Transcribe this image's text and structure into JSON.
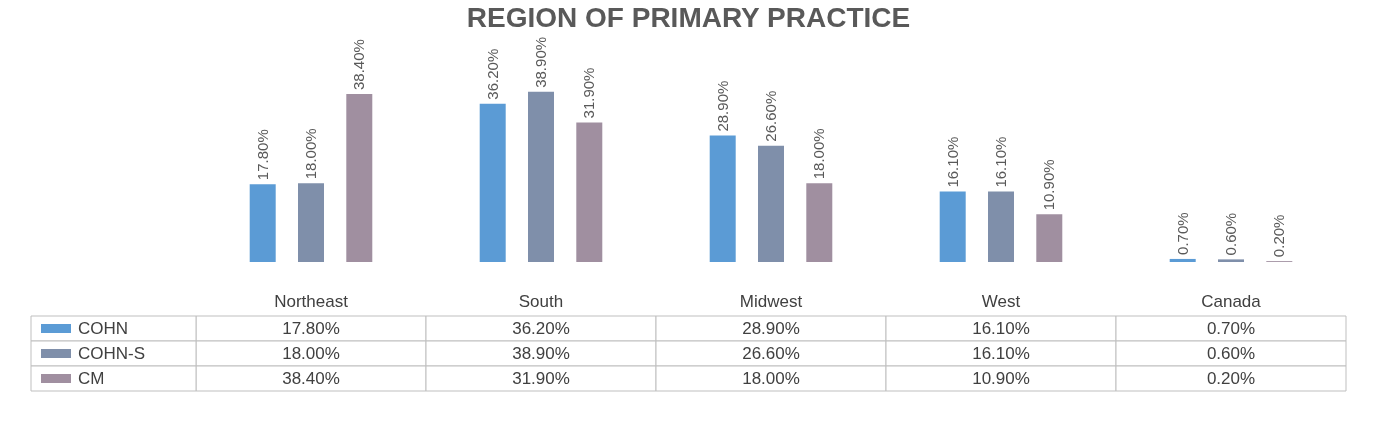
{
  "chart_data": {
    "type": "bar",
    "title": "REGION OF PRIMARY PRACTICE",
    "categories": [
      "Northeast",
      "South",
      "Midwest",
      "West",
      "Canada"
    ],
    "series": [
      {
        "name": "COHN",
        "color": "#5b9bd5",
        "values": [
          17.8,
          36.2,
          28.9,
          16.1,
          0.7
        ],
        "value_labels": [
          "17.80%",
          "36.20%",
          "28.90%",
          "16.10%",
          "0.70%"
        ]
      },
      {
        "name": "COHN-S",
        "color": "#7f8faa",
        "values": [
          18.0,
          38.9,
          26.6,
          16.1,
          0.6
        ],
        "value_labels": [
          "18.00%",
          "38.90%",
          "26.60%",
          "16.10%",
          "0.60%"
        ]
      },
      {
        "name": "CM",
        "color": "#a08fa0",
        "values": [
          38.4,
          31.9,
          18.0,
          10.9,
          0.2
        ],
        "value_labels": [
          "38.40%",
          "31.90%",
          "18.00%",
          "10.90%",
          "0.20%"
        ]
      }
    ],
    "legend": "bottom left"
  }
}
